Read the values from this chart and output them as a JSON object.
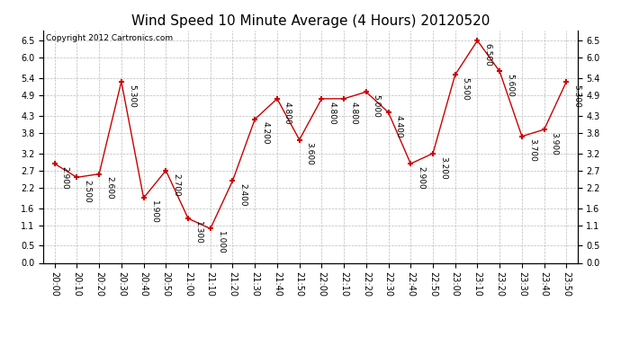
{
  "title": "Wind Speed 10 Minute Average (4 Hours) 20120520",
  "copyright_text": "Copyright 2012 Cartronics.com",
  "x_labels": [
    "20:00",
    "20:10",
    "20:20",
    "20:30",
    "20:40",
    "20:50",
    "21:00",
    "21:10",
    "21:20",
    "21:30",
    "21:40",
    "21:50",
    "22:00",
    "22:10",
    "22:20",
    "22:30",
    "22:40",
    "22:50",
    "23:00",
    "23:10",
    "23:20",
    "23:30",
    "23:40",
    "23:50"
  ],
  "y_values": [
    2.9,
    2.5,
    2.6,
    5.3,
    1.9,
    2.7,
    1.3,
    1.0,
    2.4,
    4.2,
    4.8,
    3.6,
    4.8,
    4.8,
    5.0,
    4.4,
    2.9,
    3.2,
    5.5,
    6.5,
    5.6,
    3.7,
    3.9,
    5.3
  ],
  "line_color": "#cc0000",
  "marker_color": "#cc0000",
  "bg_color": "#ffffff",
  "plot_bg_color": "#ffffff",
  "grid_color": "#bbbbbb",
  "yticks": [
    0.0,
    0.5,
    1.1,
    1.6,
    2.2,
    2.7,
    3.2,
    3.8,
    4.3,
    4.9,
    5.4,
    6.0,
    6.5
  ],
  "ytick_labels": [
    "0.0",
    "0.5",
    "1.1",
    "1.6",
    "2.2",
    "2.7",
    "3.2",
    "3.8",
    "4.3",
    "4.9",
    "5.4",
    "6.0",
    "6.5"
  ],
  "title_fontsize": 11,
  "label_fontsize": 7,
  "annot_fontsize": 6.5,
  "copyright_fontsize": 6.5
}
